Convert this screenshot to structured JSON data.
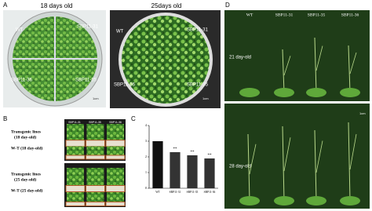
{
  "panel_a": {
    "label": "A",
    "plates": [
      {
        "title": "18 days old",
        "labels": [
          "WT",
          "SBP11-31",
          "SBP11-36",
          "SBP11-35"
        ],
        "scale": "1cm"
      },
      {
        "title": "25days old",
        "labels": [
          "WT",
          "SBP11-31",
          "SBP11-36",
          "SBP11-35"
        ],
        "scale": "1cm"
      }
    ]
  },
  "panel_b": {
    "label": "B",
    "columns": [
      "SBP11-31",
      "SBP11-35",
      "SBP11-36"
    ],
    "rows": [
      {
        "lines": [
          "Transgenic lines",
          "(18 day-old)"
        ],
        "wt": "W-T (18 day-old)"
      },
      {
        "lines": [
          "Transgenic lines",
          "(25 day-old)"
        ],
        "wt": "W-T (25 day-old)"
      }
    ]
  },
  "panel_c": {
    "label": "C"
  },
  "chart_data": {
    "type": "bar",
    "categories": [
      "WT",
      "SBP11-31",
      "SBP11-35",
      "SBP11-36"
    ],
    "values": [
      3.0,
      2.3,
      2.1,
      1.9
    ],
    "significance": [
      null,
      "**",
      "**",
      "**"
    ],
    "colors": [
      "#111111",
      "#333333",
      "#333333",
      "#333333"
    ],
    "ylim": [
      0,
      4
    ],
    "yticks": [
      0,
      1,
      2,
      3,
      4
    ],
    "grid": false
  },
  "panel_d": {
    "label": "D",
    "columns": [
      "WT",
      "SBP11-31",
      "SBP11-35",
      "SBP11-36"
    ],
    "ages": [
      "21 day-old",
      "28 day-old"
    ],
    "scale": "1cm"
  }
}
